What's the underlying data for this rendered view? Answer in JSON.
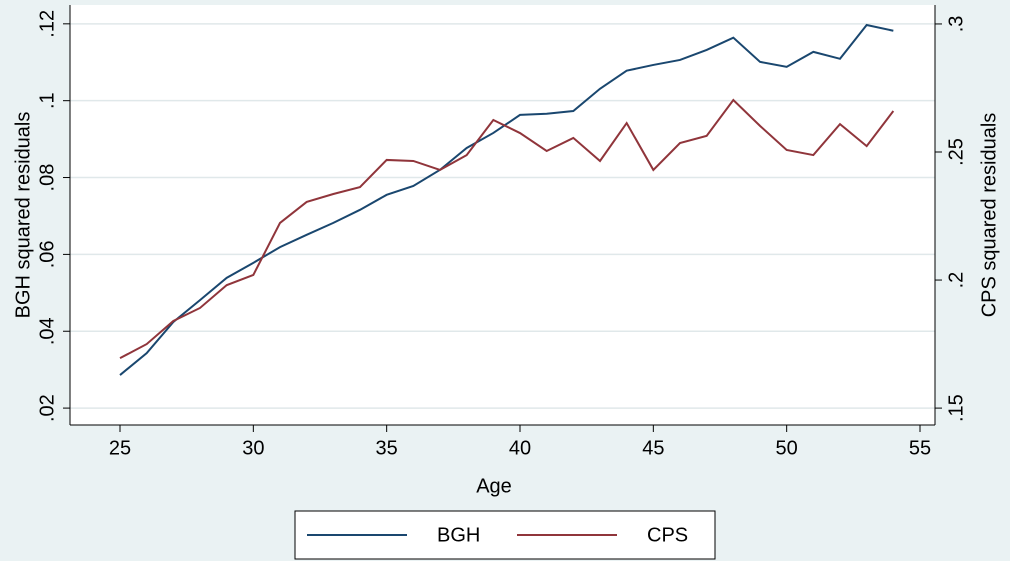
{
  "chart_data": {
    "type": "line",
    "x_label": "Age",
    "y_label": "BGH squared residuals",
    "y2_label": "CPS squared residuals",
    "x": [
      25,
      26,
      27,
      28,
      29,
      30,
      31,
      32,
      33,
      34,
      35,
      36,
      37,
      38,
      39,
      40,
      41,
      42,
      43,
      44,
      45,
      46,
      47,
      48,
      49,
      50,
      51,
      52,
      53,
      54
    ],
    "series": [
      {
        "name": "BGH",
        "color": "#1a476f",
        "axis": "y",
        "values": [
          0.0286,
          0.0343,
          0.0424,
          0.0481,
          0.0539,
          0.0578,
          0.0619,
          0.0651,
          0.0682,
          0.0716,
          0.0755,
          0.0778,
          0.082,
          0.0877,
          0.0916,
          0.0963,
          0.0966,
          0.0973,
          0.1031,
          0.1078,
          0.1093,
          0.1106,
          0.1132,
          0.1164,
          0.1101,
          0.1088,
          0.1127,
          0.1109,
          0.1197,
          0.1182
        ]
      },
      {
        "name": "CPS",
        "color": "#90353b",
        "axis": "y2",
        "values": [
          0.1695,
          0.175,
          0.184,
          0.1891,
          0.198,
          0.202,
          0.2223,
          0.2305,
          0.2336,
          0.2363,
          0.2469,
          0.2465,
          0.243,
          0.2488,
          0.2625,
          0.2574,
          0.2504,
          0.2555,
          0.2465,
          0.2613,
          0.243,
          0.2535,
          0.2563,
          0.2703,
          0.2602,
          0.2508,
          0.2488,
          0.2609,
          0.2523,
          0.266
        ]
      }
    ],
    "xlim": [
      23.125,
      55.5625
    ],
    "xticks": [
      25,
      30,
      35,
      40,
      45,
      50,
      55
    ],
    "ylim": [
      0.0156,
      0.1249
    ],
    "yticks": [
      {
        "value": 0.02,
        "label": ".02"
      },
      {
        "value": 0.04,
        "label": ".04"
      },
      {
        "value": 0.06,
        "label": ".06"
      },
      {
        "value": 0.08,
        "label": ".08"
      },
      {
        "value": 0.1,
        "label": ".1"
      },
      {
        "value": 0.12,
        "label": ".12"
      }
    ],
    "y2lim": [
      0.1434,
      0.3074
    ],
    "y2ticks": [
      {
        "value": 0.15,
        "label": ".15"
      },
      {
        "value": 0.2,
        "label": ".2"
      },
      {
        "value": 0.25,
        "label": ".25"
      },
      {
        "value": 0.3,
        "label": ".3"
      }
    ],
    "grid": true,
    "legend": "bottom"
  }
}
